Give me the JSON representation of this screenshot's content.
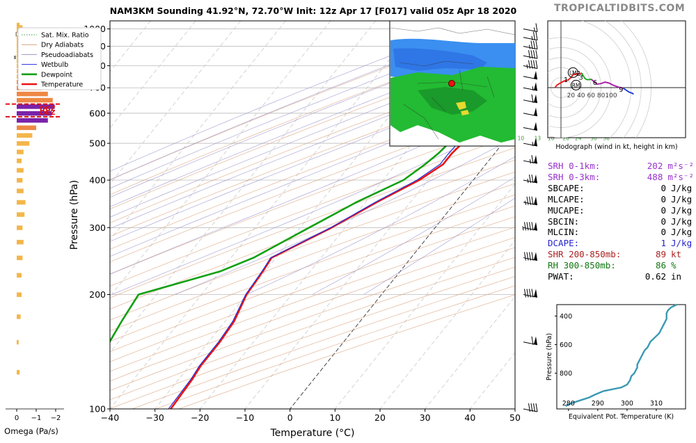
{
  "title": "NAM3KM Sounding 41.92°N, 72.70°W Init: 12z Apr 17 [F017] valid 05z Apr 18 2020",
  "watermark": "TROPICALTIDBITS.COM",
  "skewt": {
    "xlabel": "Temperature (°C)",
    "ylabel": "Pressure (hPa)",
    "x_ticks": [
      -40,
      -30,
      -20,
      -10,
      0,
      10,
      20,
      30,
      40,
      50
    ],
    "p_ticks": [
      100,
      200,
      300,
      400,
      500,
      600,
      700,
      800,
      900,
      1000
    ],
    "x_range": [
      -40,
      50
    ],
    "p_range": [
      1050,
      100
    ],
    "surface_label": "34F",
    "mixing_ratio_labels": [
      "2",
      "4",
      "6",
      "8",
      "10",
      "13",
      "16",
      "20",
      "24",
      "30",
      "36"
    ],
    "legend": [
      {
        "label": "Sat. Mix. Ratio",
        "color": "#3c9a3c",
        "style": "dotted"
      },
      {
        "label": "Dry Adiabats",
        "color": "#d9a07a",
        "style": "solid"
      },
      {
        "label": "Pseudoadiabats",
        "color": "#9a94cc",
        "style": "solid"
      },
      {
        "label": "Wetbulb",
        "color": "#2233dd",
        "style": "solid"
      },
      {
        "label": "Dewpoint",
        "color": "#11a011",
        "style": "bold"
      },
      {
        "label": "Temperature",
        "color": "#ee1111",
        "style": "bold"
      }
    ]
  },
  "chart_data": [
    {
      "type": "line",
      "name": "skew-t",
      "series": [
        {
          "name": "Temperature",
          "color": "#ee1111",
          "p": [
            1025,
            1000,
            960,
            925,
            900,
            850,
            800,
            750,
            700,
            650,
            600,
            550,
            500,
            470,
            440,
            400,
            350,
            300,
            250,
            230,
            200,
            170,
            150,
            130,
            120,
            100
          ],
          "t": [
            1,
            2,
            3,
            2,
            2.5,
            4,
            4,
            2.5,
            0.5,
            -1.5,
            -3.5,
            -6,
            -9,
            -9.5,
            -9.5,
            -12,
            -17.5,
            -23,
            -31,
            -30.5,
            -30,
            -28,
            -27.5,
            -27.5,
            -27,
            -26.5
          ]
        },
        {
          "name": "Wetbulb",
          "color": "#2233dd",
          "p": [
            1025,
            1000,
            960,
            925,
            900,
            850,
            800,
            750,
            700,
            650,
            600,
            550,
            500,
            470,
            440,
            400,
            350,
            300,
            250,
            230,
            200,
            170,
            150,
            130,
            120,
            100
          ],
          "t": [
            0.5,
            1.5,
            2.5,
            2,
            2.3,
            3.5,
            3.5,
            2,
            0,
            -2,
            -4,
            -6.5,
            -10,
            -10.2,
            -10.2,
            -12.5,
            -17.8,
            -23.2,
            -31.2,
            -30.7,
            -30.2,
            -28.3,
            -27.8,
            -27.8,
            -27.3,
            -27
          ]
        },
        {
          "name": "Dewpoint",
          "color": "#11a011",
          "p": [
            1025,
            1000,
            960,
            925,
            900,
            850,
            800,
            750,
            700,
            650,
            600,
            550,
            500,
            470,
            440,
            400,
            350,
            300,
            250,
            230,
            200,
            170,
            150,
            130,
            120,
            100
          ],
          "t": [
            0,
            1,
            2,
            1.5,
            2,
            3,
            3,
            1.5,
            -1,
            -3,
            -5.5,
            -8,
            -12,
            -12.5,
            -13.5,
            -15.5,
            -22,
            -28,
            -35,
            -40,
            -54,
            -53,
            -52,
            -53,
            -53,
            -46
          ]
        }
      ]
    },
    {
      "type": "line",
      "name": "hodograph",
      "xlabel": "Hodograph (wind in kt, height in km)",
      "ring_labels": [
        20,
        40,
        60,
        80,
        100
      ],
      "height_labels": [
        {
          "label": "1",
          "u": 10,
          "v": 15
        },
        {
          "label": "2",
          "u": 35,
          "v": 28
        },
        {
          "label": "3",
          "u": 40,
          "v": 20
        },
        {
          "label": "6",
          "u": 68,
          "v": 10
        },
        {
          "label": "9",
          "u": 120,
          "v": -4
        }
      ],
      "markers": [
        {
          "label": "LM",
          "u": 24,
          "v": 30
        },
        {
          "label": "RM",
          "u": 30,
          "v": 5
        }
      ],
      "segments": [
        {
          "color": "#ee2222",
          "u": [
            -12,
            -8,
            0,
            8,
            14,
            20,
            25,
            28,
            32,
            36,
            42
          ],
          "v": [
            0,
            5,
            10,
            14,
            15,
            20,
            27,
            26,
            28,
            27,
            29
          ]
        },
        {
          "color": "#22aa22",
          "u": [
            42,
            44,
            48,
            52,
            56,
            60
          ],
          "v": [
            29,
            24,
            18,
            16,
            16,
            17
          ]
        },
        {
          "color": "#aa22aa",
          "u": [
            60,
            66,
            72,
            80,
            88,
            96,
            104,
            112,
            118,
            124
          ],
          "v": [
            17,
            12,
            7,
            8,
            11,
            9,
            5,
            2,
            0,
            -1
          ]
        },
        {
          "color": "#2244dd",
          "u": [
            124,
            130,
            136,
            142,
            145
          ],
          "v": [
            -1,
            -5,
            -9,
            -11,
            -13
          ]
        }
      ]
    },
    {
      "type": "bar",
      "name": "omega",
      "xlabel": "Omega (Pa/s)",
      "x_ticks": [
        "0",
        "−1",
        "−2"
      ],
      "dgz_label": "DGZ",
      "dgz_pressure": [
        575,
        645
      ],
      "levels": [
        1025,
        1010,
        990,
        970,
        950,
        925,
        900,
        875,
        850,
        825,
        800,
        775,
        750,
        725,
        700,
        675,
        650,
        625,
        600,
        575,
        550,
        525,
        500,
        475,
        450,
        425,
        400,
        375,
        350,
        325,
        300,
        275,
        250,
        225,
        200,
        175,
        150,
        125
      ],
      "values": [
        0.15,
        0.3,
        0.1,
        -0.05,
        0.0,
        0.15,
        0.1,
        0.05,
        0.0,
        0.1,
        0.25,
        0.3,
        0.6,
        0.9,
        1.3,
        1.6,
        1.85,
        1.95,
        1.8,
        1.6,
        1.0,
        0.8,
        0.65,
        0.35,
        0.25,
        0.35,
        0.3,
        0.35,
        0.45,
        0.4,
        0.3,
        0.35,
        0.3,
        0.25,
        0.25,
        0.2,
        0.1,
        0.15
      ]
    },
    {
      "type": "line",
      "name": "theta-e",
      "xlabel": "Equivalent Pot. Temperature (K)",
      "ylabel": "Pressure (hPa)",
      "x_ticks": [
        280,
        290,
        300,
        310
      ],
      "y_ticks": [
        400,
        600,
        800
      ],
      "x_range": [
        276,
        320
      ],
      "y_range": [
        1050,
        320
      ],
      "color": "#3a99b4",
      "p": [
        1030,
        1010,
        990,
        970,
        950,
        925,
        900,
        880,
        850,
        820,
        800,
        780,
        760,
        740,
        720,
        700,
        680,
        660,
        640,
        620,
        600,
        580,
        560,
        540,
        520,
        500,
        480,
        460,
        440,
        420,
        400,
        380,
        360,
        340,
        320
      ],
      "theta": [
        279,
        281,
        284,
        287,
        289,
        292,
        298,
        300,
        301,
        301.5,
        302.5,
        303,
        303.5,
        303.5,
        304,
        304.5,
        305,
        305.5,
        306,
        307,
        307.5,
        308,
        309,
        310,
        311,
        311.5,
        312,
        312.5,
        313,
        313.5,
        313.5,
        313.5,
        314,
        315,
        317
      ]
    }
  ],
  "map": {
    "location_marker_color": "#ee1111"
  },
  "barbs": {
    "pressures": [
      100,
      150,
      200,
      250,
      300,
      350,
      400,
      450,
      500,
      550,
      600,
      650,
      700,
      750,
      800,
      850,
      900,
      950,
      1000
    ],
    "speeds_kt": [
      40,
      60,
      90,
      90,
      95,
      85,
      75,
      65,
      55,
      50,
      50,
      60,
      55,
      50,
      45,
      40,
      35,
      25,
      15
    ]
  },
  "stats": [
    {
      "label": "SRH 0-1km:",
      "value": "202",
      "unit": "m²s⁻²",
      "color": "#9932cc"
    },
    {
      "label": "SRH 0-3km:",
      "value": "488",
      "unit": "m²s⁻²",
      "color": "#9932cc"
    },
    {
      "label": "SBCAPE:",
      "value": "0",
      "unit": "J/kg",
      "color": "#000000"
    },
    {
      "label": "MLCAPE:",
      "value": "0",
      "unit": "J/kg",
      "color": "#000000"
    },
    {
      "label": "MUCAPE:",
      "value": "0",
      "unit": "J/kg",
      "color": "#000000"
    },
    {
      "label": "SBCIN:",
      "value": "0",
      "unit": "J/kg",
      "color": "#000000"
    },
    {
      "label": "MLCIN:",
      "value": "0",
      "unit": "J/kg",
      "color": "#000000"
    },
    {
      "label": "DCAPE:",
      "value": "1",
      "unit": "J/kg",
      "color": "#2222cc"
    },
    {
      "label": "SHR 200-850mb:",
      "value": "89",
      "unit": "kt",
      "color": "#aa2222"
    },
    {
      "label": "RH 300-850mb:",
      "value": "86",
      "unit": "%",
      "color": "#117711"
    },
    {
      "label": "PWAT:",
      "value": "0.62",
      "unit": "in",
      "color": "#000000"
    }
  ]
}
